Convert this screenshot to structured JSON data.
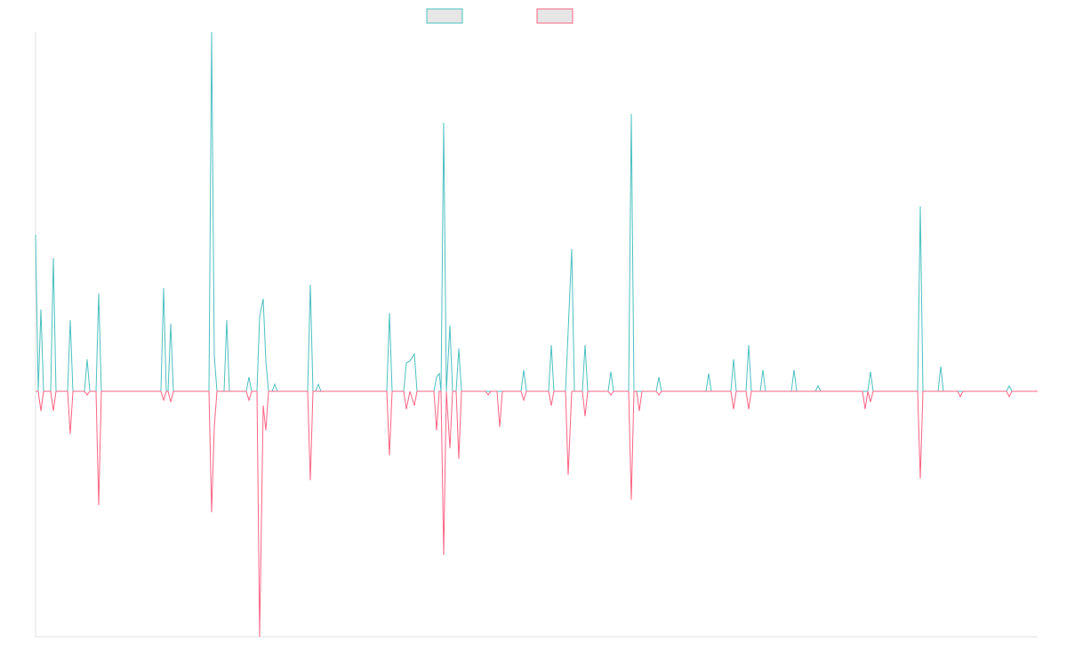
{
  "chart_data": {
    "type": "line",
    "x": [
      0,
      3,
      6,
      9,
      17,
      20,
      23,
      36,
      39,
      42,
      55,
      58,
      61,
      68,
      71,
      74,
      141,
      144,
      147,
      149,
      152,
      155,
      195,
      198,
      201,
      204,
      212,
      215,
      218,
      237,
      240,
      243,
      249,
      252,
      256,
      259,
      262,
      266,
      269,
      272,
      306,
      309,
      312,
      315,
      318,
      321,
      395,
      398,
      401,
      414,
      417,
      421,
      426,
      429,
      448,
      451,
      454,
      456,
      459,
      462,
      466,
      469,
      473,
      476,
      479,
      506,
      509,
      512,
      519,
      522,
      525,
      546,
      549,
      552,
      577,
      580,
      583,
      596,
      599,
      603,
      606,
      615,
      618,
      621,
      644,
      647,
      650,
      667,
      670,
      673,
      676,
      679,
      682,
      698,
      701,
      704,
      754,
      757,
      760,
      782,
      785,
      788,
      799,
      802,
      805,
      815,
      818,
      821,
      850,
      853,
      856,
      877,
      880,
      883,
      930,
      933,
      936,
      939,
      942,
      992,
      995,
      998,
      1015,
      1018,
      1021,
      1037,
      1040,
      1043,
      1092,
      1095,
      1098,
      1127
    ],
    "series": [
      {
        "color": "#4bc0c0",
        "values": [
          44,
          0,
          23,
          0,
          0,
          37.5,
          0,
          0,
          20,
          0,
          0,
          9,
          0,
          0,
          27.5,
          0,
          0,
          29,
          0,
          0,
          19,
          0,
          0,
          101,
          10,
          0,
          0,
          20,
          0,
          0,
          4,
          0,
          0,
          21,
          26,
          8.5,
          0,
          0,
          2,
          0,
          0,
          30,
          0,
          0,
          2,
          0,
          0,
          22,
          0,
          0,
          8,
          8.5,
          10.5,
          0,
          0,
          4,
          5,
          0,
          75.5,
          0,
          18.5,
          0,
          0,
          12,
          0,
          0,
          0,
          0,
          0,
          0,
          0,
          0,
          6,
          0,
          0,
          13,
          0,
          0,
          17,
          40,
          0,
          0,
          13,
          0,
          0,
          5.5,
          0,
          0,
          78,
          0,
          0,
          0,
          0,
          0,
          4,
          0,
          0,
          5,
          0,
          0,
          9,
          0,
          0,
          13,
          0,
          0,
          6,
          0,
          0,
          6,
          0,
          0,
          1.5,
          0,
          0,
          0,
          0,
          5.5,
          0,
          0,
          52,
          0,
          0,
          7,
          0,
          0,
          0,
          0,
          0,
          1.5,
          0,
          0
        ]
      },
      {
        "color": "#ff6384",
        "values": [
          0,
          0,
          -5.5,
          0,
          0,
          -5.5,
          0,
          0,
          -12,
          0,
          0,
          -1,
          0,
          0,
          -32,
          0,
          0,
          -2.5,
          0,
          0,
          -3,
          0,
          0,
          -34,
          -10,
          0,
          0,
          0,
          0,
          0,
          -2.5,
          0,
          0,
          -69,
          -4,
          -11,
          0,
          0,
          0,
          0,
          0,
          -25,
          0,
          0,
          0,
          0,
          0,
          -18,
          0,
          0,
          -5,
          0,
          -4,
          0,
          0,
          -11,
          0,
          0,
          -46,
          0,
          -16,
          0,
          0,
          -19,
          0,
          0,
          -1,
          0,
          0,
          -10,
          0,
          0,
          -2.5,
          0,
          0,
          -4,
          0,
          0,
          -23.5,
          0,
          0,
          0,
          -7,
          0,
          0,
          -1,
          0,
          0,
          -30.5,
          0,
          0,
          -5.5,
          0,
          0,
          -1,
          0,
          0,
          0,
          0,
          0,
          -5,
          0,
          0,
          -5,
          0,
          0,
          0,
          0,
          0,
          0,
          0,
          0,
          0,
          0,
          0,
          -5,
          0,
          -3,
          0,
          0,
          -24.5,
          0,
          0,
          0,
          0,
          0,
          -1.5,
          0,
          0,
          -1.5,
          0,
          0
        ]
      }
    ],
    "xlim": [
      0,
      1127
    ],
    "ylim": [
      -69,
      101
    ]
  }
}
